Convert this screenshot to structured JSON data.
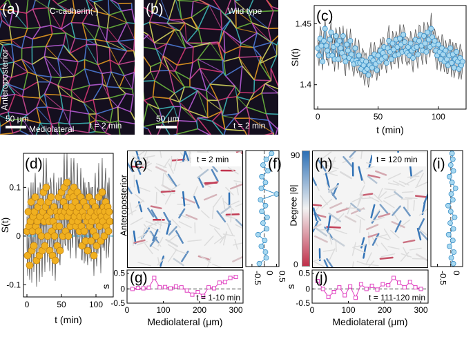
{
  "panel_a": {
    "letter": "(a)",
    "condition": "C-cadherin(-)",
    "scale": "50 μm",
    "time": "t = 2 min",
    "axis_v": "Anteroposterior",
    "axis_h": "Mediolateral"
  },
  "panel_b": {
    "letter": "(b)",
    "condition": "Wild type",
    "scale": "50 μm",
    "time": "t = 2 min"
  },
  "panel_e": {
    "letter": "(e)",
    "time": "t = 2 min",
    "axis_v": "Anteroposterior"
  },
  "panel_h": {
    "letter": "(h)",
    "time": "t = 120 min"
  },
  "colorbar": {
    "label": "Degree |θ|",
    "ticks": [
      "0",
      "90"
    ],
    "color_low": "#c0304a",
    "color_high": "#2c6fb5"
  },
  "colors": {
    "orange": "#f0b020",
    "blue_marker": "#a8d8f0",
    "magenta": "#e040c0",
    "band": "#c8c8c8"
  },
  "chart_data": [
    {
      "id": "c",
      "letter": "(c)",
      "type": "line",
      "xlabel": "t (min)",
      "ylabel": "SI(t)",
      "xlim": [
        -3,
        123
      ],
      "ylim": [
        1.38,
        1.465
      ],
      "xticks": [
        0,
        50,
        100
      ],
      "yticks": [
        1.4,
        1.45
      ],
      "series": [
        {
          "x": [
            0,
            1,
            2,
            3,
            4,
            5,
            6,
            7,
            8,
            9,
            10,
            11,
            12,
            13,
            14,
            15,
            16,
            17,
            18,
            19,
            20,
            21,
            22,
            23,
            24,
            25,
            26,
            27,
            28,
            29,
            30,
            31,
            32,
            33,
            34,
            35,
            36,
            37,
            38,
            39,
            40,
            41,
            42,
            43,
            44,
            45,
            46,
            47,
            48,
            49,
            50,
            51,
            52,
            53,
            54,
            55,
            56,
            57,
            58,
            59,
            60,
            61,
            62,
            63,
            64,
            65,
            66,
            67,
            68,
            69,
            70,
            71,
            72,
            73,
            74,
            75,
            76,
            77,
            78,
            79,
            80,
            81,
            82,
            83,
            84,
            85,
            86,
            87,
            88,
            89,
            90,
            91,
            92,
            93,
            94,
            95,
            96,
            97,
            98,
            99,
            100,
            101,
            102,
            103,
            104,
            105,
            106,
            107,
            108,
            109,
            110,
            111,
            112,
            113,
            114,
            115,
            116,
            117,
            118,
            119,
            120
          ],
          "y": [
            1.43,
            1.424,
            1.438,
            1.432,
            1.419,
            1.436,
            1.446,
            1.432,
            1.428,
            1.424,
            1.437,
            1.443,
            1.424,
            1.431,
            1.421,
            1.44,
            1.433,
            1.421,
            1.436,
            1.43,
            1.426,
            1.44,
            1.423,
            1.419,
            1.433,
            1.428,
            1.422,
            1.436,
            1.425,
            1.42,
            1.417,
            1.43,
            1.42,
            1.418,
            1.424,
            1.418,
            1.413,
            1.42,
            1.416,
            1.411,
            1.419,
            1.413,
            1.408,
            1.416,
            1.422,
            1.414,
            1.42,
            1.425,
            1.417,
            1.412,
            1.424,
            1.419,
            1.428,
            1.421,
            1.426,
            1.431,
            1.423,
            1.418,
            1.43,
            1.436,
            1.427,
            1.421,
            1.434,
            1.429,
            1.424,
            1.437,
            1.431,
            1.425,
            1.438,
            1.433,
            1.427,
            1.441,
            1.435,
            1.428,
            1.426,
            1.431,
            1.424,
            1.434,
            1.428,
            1.422,
            1.43,
            1.437,
            1.431,
            1.425,
            1.436,
            1.441,
            1.432,
            1.428,
            1.44,
            1.434,
            1.427,
            1.443,
            1.437,
            1.431,
            1.446,
            1.439,
            1.433,
            1.436,
            1.428,
            1.424,
            1.433,
            1.427,
            1.421,
            1.43,
            1.425,
            1.419,
            1.428,
            1.421,
            1.416,
            1.424,
            1.43,
            1.418,
            1.425,
            1.414,
            1.421,
            1.427,
            1.419,
            1.413,
            1.422,
            1.416,
            1.419
          ]
        }
      ]
    },
    {
      "id": "d",
      "letter": "(d)",
      "type": "line",
      "xlabel": "t (min)",
      "ylabel": "S(t)",
      "xlim": [
        -5,
        125
      ],
      "ylim": [
        -0.125,
        0.17
      ],
      "xticks": [
        0,
        50,
        100
      ],
      "yticks": [
        -0.1,
        0,
        0.1
      ],
      "series": [
        {
          "x": [
            0,
            1,
            2,
            3,
            4,
            5,
            6,
            7,
            8,
            9,
            10,
            11,
            12,
            13,
            14,
            15,
            16,
            17,
            18,
            19,
            20,
            21,
            22,
            23,
            24,
            25,
            26,
            27,
            28,
            29,
            30,
            31,
            32,
            33,
            34,
            35,
            36,
            37,
            38,
            39,
            40,
            41,
            42,
            43,
            44,
            45,
            46,
            47,
            48,
            49,
            50,
            51,
            52,
            53,
            54,
            55,
            56,
            57,
            58,
            59,
            60,
            61,
            62,
            63,
            64,
            65,
            66,
            67,
            68,
            69,
            70,
            71,
            72,
            73,
            74,
            75,
            76,
            77,
            78,
            79,
            80,
            81,
            82,
            83,
            84,
            85,
            86,
            87,
            88,
            89,
            90,
            91,
            92,
            93,
            94,
            95,
            96,
            97,
            98,
            99,
            100,
            101,
            102,
            103,
            104,
            105,
            106,
            107,
            108,
            109,
            110,
            111,
            112,
            113,
            114,
            115,
            116,
            117,
            118,
            119,
            120
          ],
          "y": [
            0.01,
            -0.04,
            0.05,
            0.02,
            -0.06,
            0.03,
            0.07,
            -0.03,
            0.01,
            0.04,
            -0.02,
            0.05,
            0.08,
            0.02,
            -0.05,
            0.03,
            0.06,
            0.01,
            -0.04,
            0.04,
            0.07,
            0.0,
            -0.03,
            0.05,
            0.09,
            0.03,
            -0.02,
            0.06,
            0.1,
            0.04,
            0.0,
            0.07,
            0.03,
            -0.03,
            0.05,
            0.08,
            0.01,
            -0.04,
            0.03,
            0.06,
            0.0,
            -0.05,
            0.02,
            0.05,
            -0.02,
            0.04,
            0.08,
            0.02,
            -0.03,
            0.05,
            0.09,
            0.04,
            0.0,
            0.07,
            0.1,
            0.05,
            0.01,
            0.06,
            0.11,
            0.04,
            0.0,
            0.08,
            0.05,
            0.02,
            0.09,
            0.06,
            0.03,
            0.08,
            0.1,
            0.04,
            0.07,
            0.02,
            0.05,
            0.09,
            0.03,
            0.06,
            0.01,
            0.04,
            0.08,
            0.02,
            -0.02,
            0.05,
            0.07,
            0.01,
            0.04,
            -0.01,
            0.06,
            0.03,
            -0.03,
            0.04,
            0.08,
            0.02,
            0.05,
            -0.01,
            0.03,
            0.07,
            0.01,
            -0.04,
            0.04,
            0.06,
            0.0,
            -0.02,
            0.05,
            0.03,
            0.08,
            0.02,
            0.05,
            -0.01,
            0.04,
            0.09,
            0.03,
            0.06,
            0.0,
            0.05,
            0.07,
            0.02,
            0.04,
            0.06,
            0.01,
            0.05,
            0.03
          ]
        }
      ]
    },
    {
      "id": "f",
      "letter": "(f)",
      "type": "line",
      "xticks": [
        -0.5,
        0,
        0.5
      ],
      "xlim": [
        -0.75,
        0.6
      ],
      "series": [
        {
          "y": [
            1,
            2,
            3,
            4,
            5,
            6,
            7,
            8,
            9,
            10,
            11,
            12,
            13,
            14,
            15,
            16,
            17,
            18,
            19,
            20
          ],
          "x": [
            -0.2,
            0.08,
            0.05,
            -0.12,
            0.02,
            -0.25,
            0.1,
            -0.05,
            0.12,
            -0.1,
            0.05,
            -0.15,
            0.5,
            -0.12,
            0.05,
            -0.1,
            0.15,
            -0.05,
            0.08,
            0.3
          ]
        }
      ]
    },
    {
      "id": "i",
      "letter": "(i)",
      "type": "line",
      "xticks": [
        -0.5,
        0
      ],
      "xlim": [
        -0.75,
        0.45
      ],
      "series": [
        {
          "y": [
            1,
            2,
            3,
            4,
            5,
            6,
            7,
            8,
            9,
            10,
            11,
            12,
            13,
            14,
            15,
            16,
            17,
            18,
            19,
            20
          ],
          "x": [
            0.1,
            0.02,
            0.12,
            -0.05,
            0.08,
            -0.08,
            0.1,
            -0.02,
            0.15,
            0.0,
            -0.1,
            0.08,
            0.02,
            0.18,
            0.05,
            -0.05,
            0.1,
            0.0,
            0.08,
            0.05
          ]
        }
      ]
    },
    {
      "id": "g",
      "letter": "(g)",
      "type": "line",
      "annotation": "t = 1-10 min",
      "xlabel": "Mediolateral (μm)",
      "ylabel": "s",
      "xlim": [
        0,
        320
      ],
      "ylim": [
        -0.45,
        0.6
      ],
      "xticks": [
        0,
        100,
        200,
        300
      ],
      "yticks": [
        -0.5,
        0,
        0.5
      ],
      "series": [
        {
          "x": [
            15,
            30,
            45,
            60,
            75,
            90,
            105,
            120,
            135,
            150,
            165,
            180,
            195,
            210,
            225,
            240,
            255,
            270,
            285,
            300
          ],
          "y": [
            0.0,
            0.03,
            0.02,
            0.04,
            0.35,
            0.05,
            0.06,
            0.02,
            0.08,
            0.05,
            -0.05,
            -0.18,
            -0.1,
            -0.22,
            0.05,
            0.02,
            0.2,
            0.22,
            0.35,
            0.38
          ]
        }
      ]
    },
    {
      "id": "j",
      "letter": "(j)",
      "type": "line",
      "annotation": "t = 111-120 min",
      "xlabel": "Mediolateral (μm)",
      "ylabel": "s",
      "xlim": [
        0,
        320
      ],
      "ylim": [
        -0.45,
        0.6
      ],
      "xticks": [
        0,
        100,
        200,
        300
      ],
      "yticks": [
        -0.5,
        0,
        0.5
      ],
      "series": [
        {
          "x": [
            15,
            30,
            45,
            60,
            75,
            90,
            105,
            120,
            135,
            150,
            165,
            180,
            195,
            210,
            225,
            240,
            255,
            270,
            285,
            300
          ],
          "y": [
            0.25,
            0.0,
            -0.25,
            -0.1,
            0.05,
            -0.2,
            0.08,
            -0.28,
            0.15,
            0.0,
            0.1,
            -0.02,
            0.15,
            0.12,
            0.35,
            0.2,
            0.05,
            0.22,
            0.05,
            0.0
          ]
        }
      ]
    }
  ]
}
